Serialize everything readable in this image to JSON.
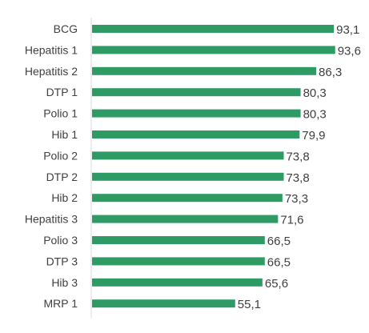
{
  "chart_data": {
    "type": "bar",
    "orientation": "horizontal",
    "categories": [
      "BCG",
      "Hepatitis 1",
      "Hepatitis 2",
      "DTP 1",
      "Polio 1",
      "Hib 1",
      "Polio 2",
      "DTP 2",
      "Hib 2",
      "Hepatitis 3",
      "Polio 3",
      "DTP 3",
      "Hib 3",
      "MRP 1"
    ],
    "values": [
      93.1,
      93.6,
      86.3,
      80.3,
      80.3,
      79.9,
      73.8,
      73.8,
      73.3,
      71.6,
      66.5,
      66.5,
      65.6,
      55.1
    ],
    "value_labels": [
      "93,1",
      "93,6",
      "86,3",
      "80,3",
      "80,3",
      "79,9",
      "73,8",
      "73,8",
      "73,3",
      "71,6",
      "66,5",
      "66,5",
      "65,6",
      "55,1"
    ],
    "xlim": [
      0,
      100
    ],
    "bar_color": "#2e9b64",
    "axis_color": "#d9d9d9",
    "grid": false,
    "legend": false
  }
}
